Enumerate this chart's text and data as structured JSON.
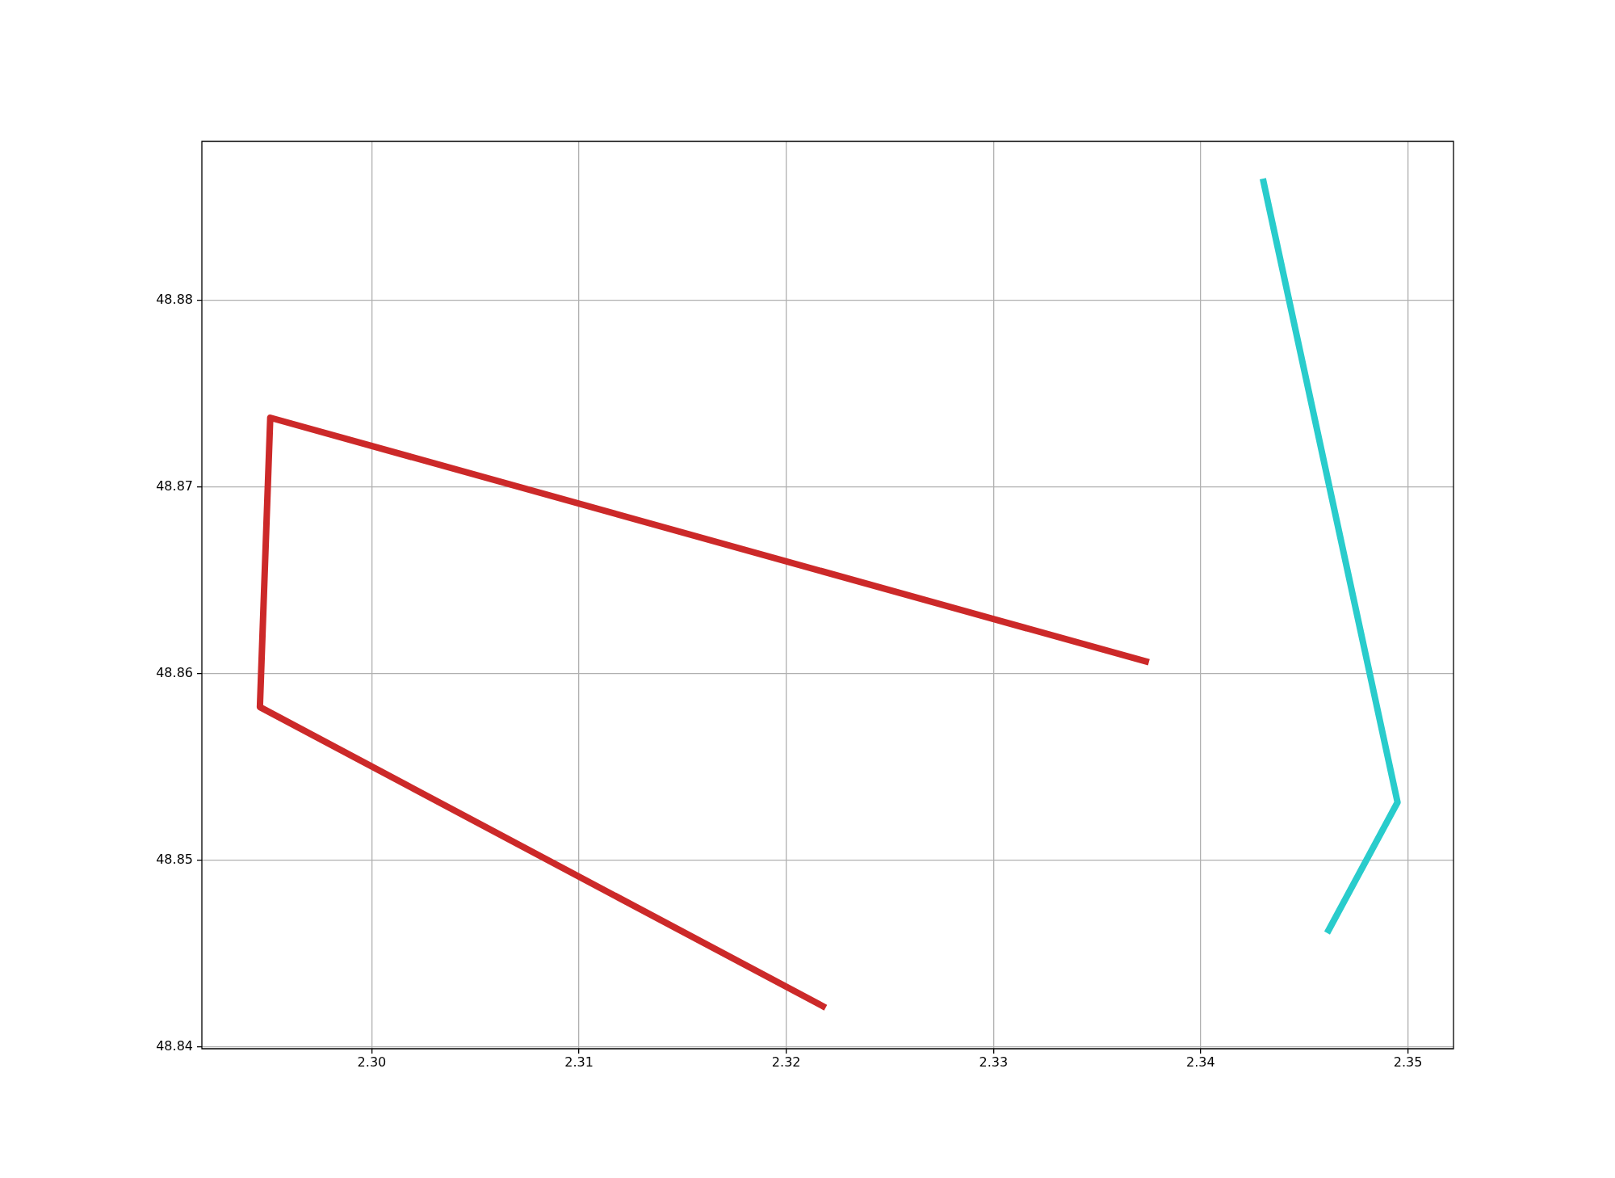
{
  "chart_data": {
    "type": "line",
    "series": [
      {
        "color": "#cc2929",
        "x": [
          2.3375,
          2.2951,
          2.2946,
          2.3219
        ],
        "values": [
          48.8606,
          48.8737,
          48.8582,
          48.8421
        ]
      },
      {
        "color": "#29cccc",
        "x": [
          2.343,
          2.3495,
          2.3461
        ],
        "values": [
          48.8865,
          48.8531,
          48.8461
        ]
      }
    ],
    "xlim": [
      2.2918,
      2.3522
    ],
    "ylim": [
      48.8399,
      48.8885
    ],
    "xticks": [
      {
        "value": 2.3,
        "label": "2.30"
      },
      2.31,
      2.32,
      2.33,
      2.34,
      2.35
    ],
    "yticks": [
      48.84,
      48.85,
      48.86,
      48.87,
      48.88
    ],
    "grid": true
  }
}
